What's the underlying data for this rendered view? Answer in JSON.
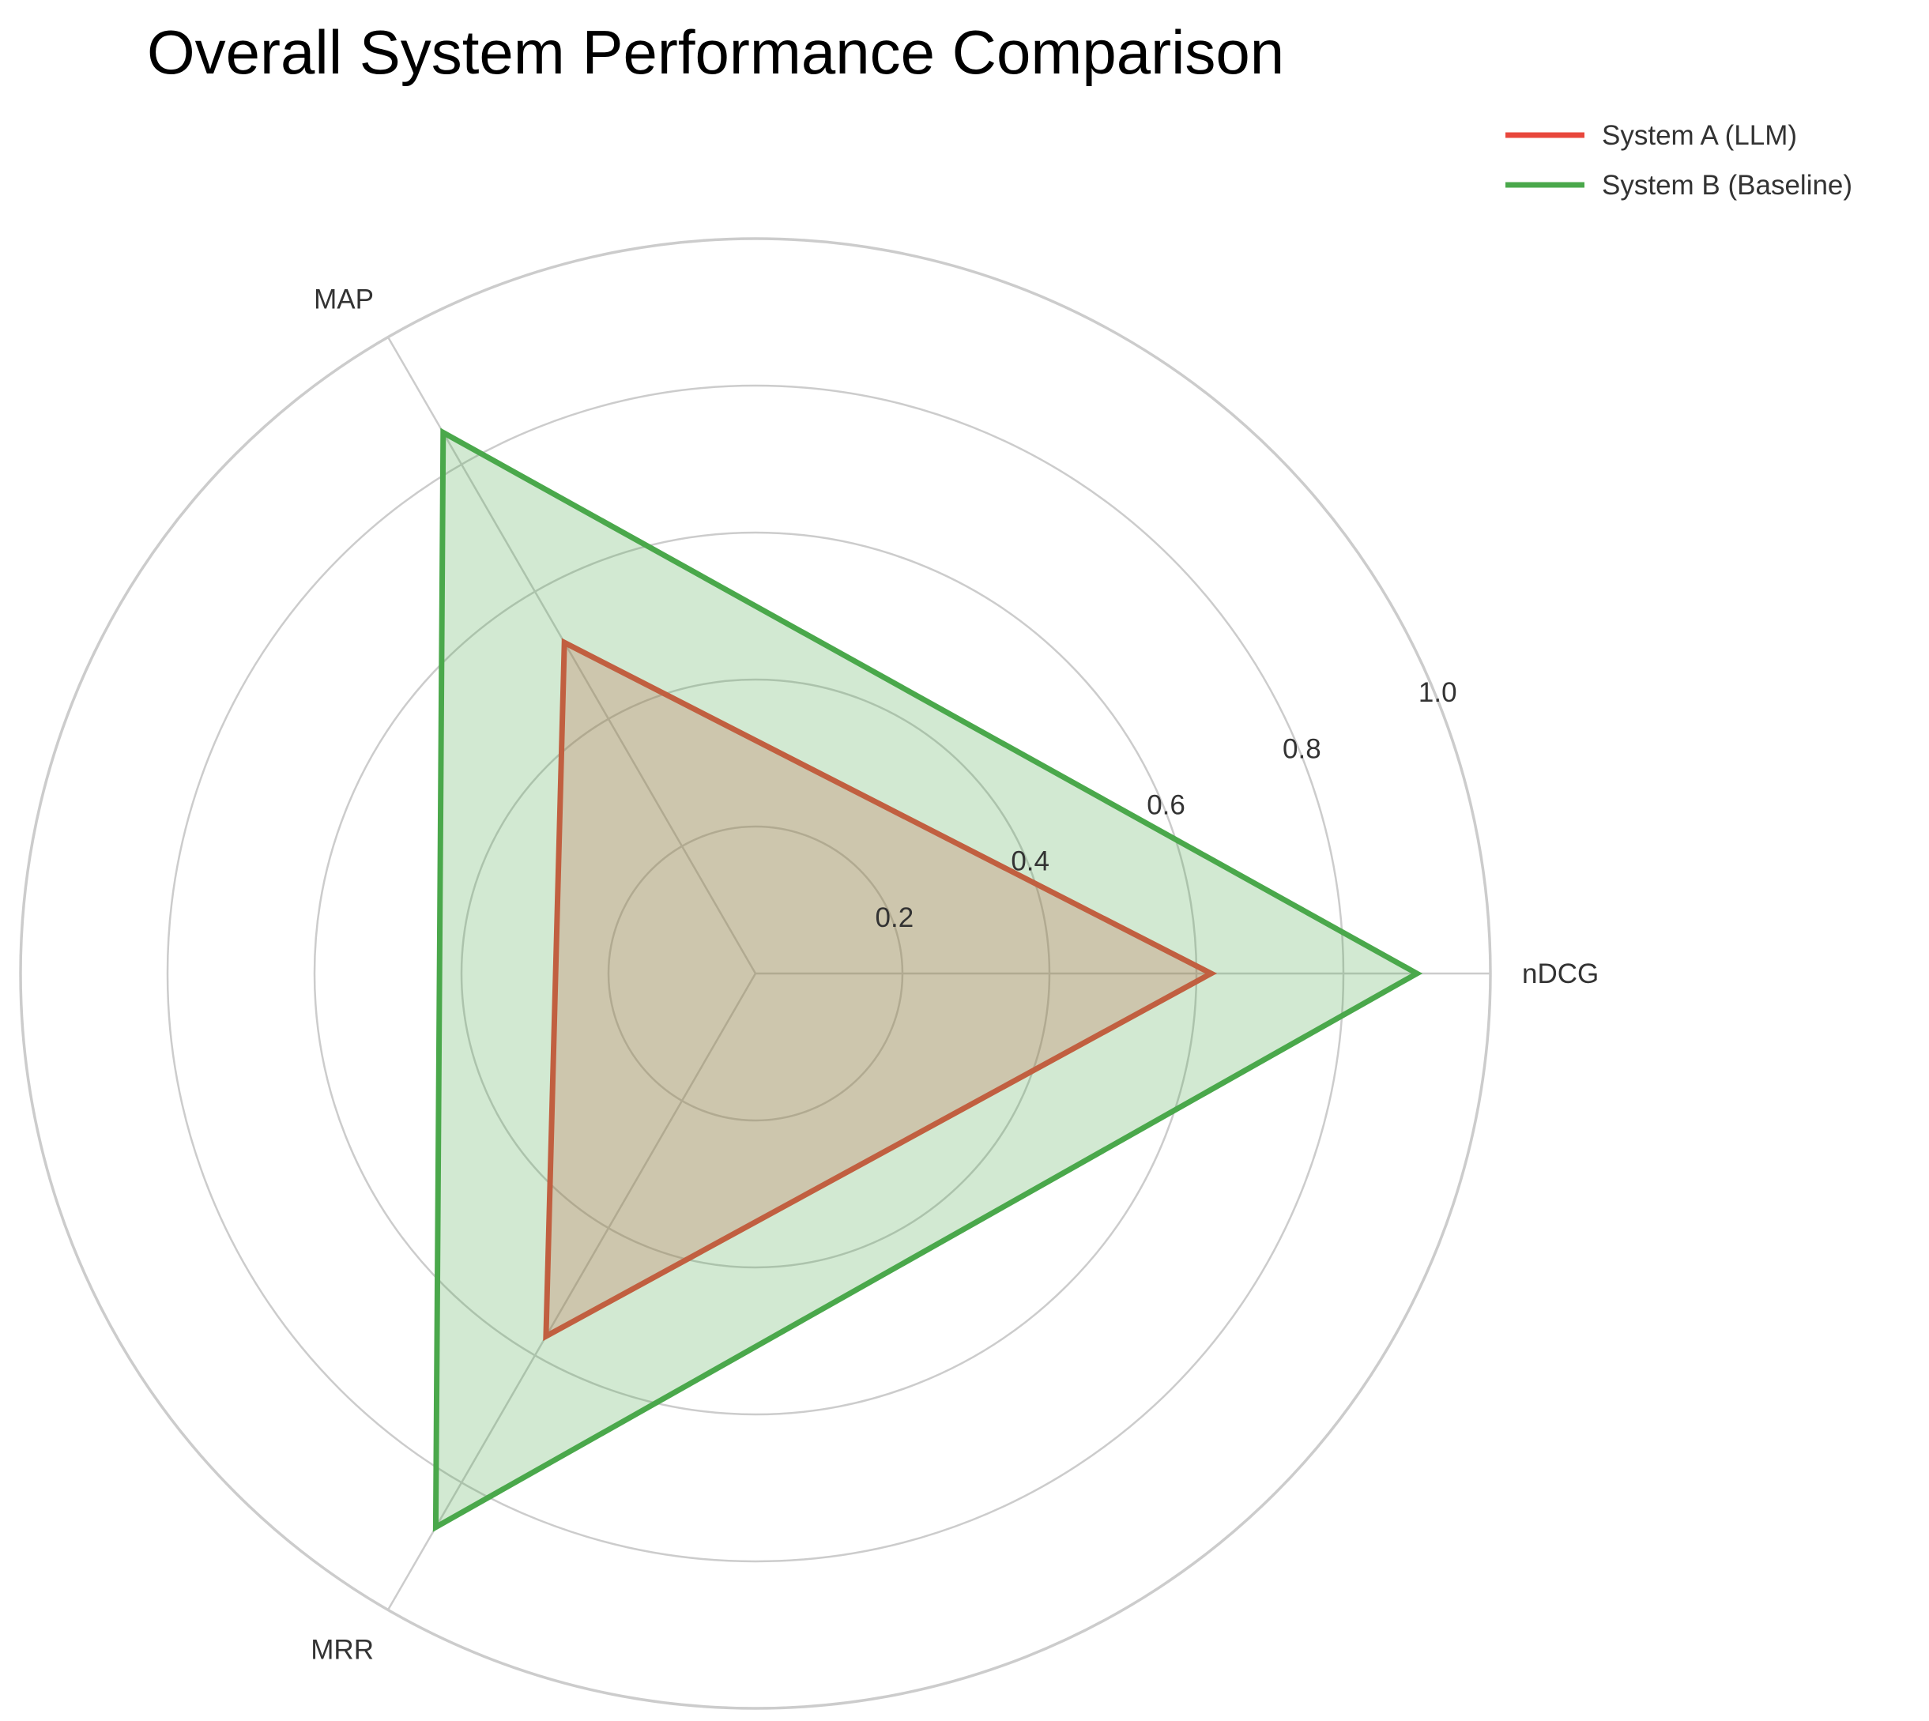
{
  "chart_data": {
    "type": "radar",
    "title": "Overall System Performance Comparison",
    "axes": [
      "nDCG",
      "MAP",
      "MRR"
    ],
    "rlim": [
      0,
      1.0
    ],
    "r_ticks": [
      "0.2",
      "0.4",
      "0.6",
      "0.8",
      "1.0"
    ],
    "grid": true,
    "legend_position": "top-right",
    "series": [
      {
        "name": "System A (LLM)",
        "values": [
          0.62,
          0.52,
          0.57
        ],
        "color": "#e8473c",
        "fill": "#e8473c"
      },
      {
        "name": "System B (Baseline)",
        "values": [
          0.9,
          0.85,
          0.87
        ],
        "color": "#4aa84b",
        "fill": "#4aa84b"
      }
    ]
  }
}
